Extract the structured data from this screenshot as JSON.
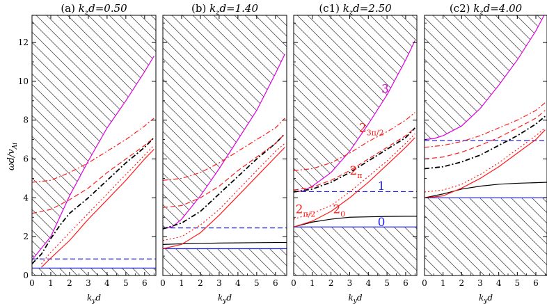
{
  "figure": {
    "ylabel": "ωd/v",
    "ylabel_sub": "Ai",
    "xlabel": "k",
    "xlabel_sub": "y",
    "xlabel_tail": "d"
  },
  "colors": {
    "black": "#000000",
    "red": "#ff1a1a",
    "blue": "#2222ee",
    "magenta": "#e000e0"
  },
  "chart_data": [
    {
      "type": "line",
      "title": "(a)  k_z d=0.50",
      "title_prefix": "(a)",
      "title_kz": "k",
      "title_sub": "z",
      "title_value": "d=0.50",
      "xlim": [
        0,
        6.6
      ],
      "ylim": [
        0,
        13.4
      ],
      "xticks": [
        "0",
        "1",
        "2",
        "3",
        "4",
        "5",
        "6"
      ],
      "yticks": [
        "0",
        "2",
        "4",
        "6",
        "8",
        "10",
        "12"
      ],
      "grid": false,
      "hatched_regions": "above upper boundary and below lower boundary",
      "series": [
        {
          "role": "upper-boundary",
          "color": "magenta",
          "dash": "solid",
          "x": [
            0,
            1,
            2,
            3,
            4,
            5,
            6,
            6.5
          ],
          "y": [
            0.8,
            2.0,
            4.1,
            5.9,
            7.6,
            9.0,
            10.5,
            11.3
          ]
        },
        {
          "role": "lower-boundary",
          "color": "blue",
          "dash": "solid",
          "x": [
            0,
            6.6
          ],
          "y": [
            0.38,
            0.38
          ]
        },
        {
          "role": "blue-dash",
          "color": "blue",
          "dash": "dash",
          "x": [
            0,
            6.6
          ],
          "y": [
            0.85,
            0.85
          ]
        },
        {
          "role": "red-solid",
          "color": "red",
          "dash": "solid",
          "x": [
            0.5,
            1,
            2,
            3,
            4,
            5,
            6,
            6.5
          ],
          "y": [
            0.42,
            0.9,
            1.8,
            2.9,
            3.9,
            4.9,
            6.0,
            6.5
          ]
        },
        {
          "role": "red-dot",
          "color": "red",
          "dash": "dot",
          "x": [
            0.5,
            1,
            2,
            3,
            4,
            5,
            6,
            6.5
          ],
          "y": [
            0.6,
            1.2,
            2.2,
            3.2,
            4.2,
            5.2,
            6.2,
            6.7
          ]
        },
        {
          "role": "black-dashdot",
          "color": "black",
          "dash": "dashdot",
          "x": [
            0,
            0.5,
            1,
            1.5,
            2,
            3,
            4,
            5,
            6,
            6.5
          ],
          "y": [
            0.6,
            1.1,
            1.9,
            2.6,
            3.2,
            4.0,
            4.9,
            5.8,
            6.6,
            7.1
          ]
        },
        {
          "role": "red-dash",
          "color": "red",
          "dash": "dash",
          "x": [
            0,
            1,
            2,
            3,
            4,
            5,
            6,
            6.5
          ],
          "y": [
            3.2,
            3.4,
            3.9,
            4.5,
            5.3,
            6.0,
            6.7,
            7.1
          ]
        },
        {
          "role": "red-dashdot",
          "color": "red",
          "dash": "dashdot",
          "x": [
            0,
            1,
            2,
            3,
            4,
            5,
            6,
            6.5
          ],
          "y": [
            4.8,
            4.9,
            5.3,
            5.8,
            6.4,
            7.0,
            7.7,
            8.1
          ]
        }
      ],
      "annotations": []
    },
    {
      "type": "line",
      "title": "(b)  k_z d=1.40",
      "title_prefix": "(b)",
      "title_kz": "k",
      "title_sub": "z",
      "title_value": "d=1.40",
      "xlim": [
        0,
        6.6
      ],
      "ylim": [
        0,
        13.4
      ],
      "xticks": [
        "0",
        "1",
        "2",
        "3",
        "4",
        "5",
        "6"
      ],
      "yticks": [],
      "grid": false,
      "series": [
        {
          "role": "upper-boundary",
          "color": "magenta",
          "dash": "solid",
          "x": [
            0,
            0.5,
            1,
            2,
            3,
            4,
            5,
            6,
            6.5
          ],
          "y": [
            2.4,
            2.5,
            2.9,
            4.1,
            5.5,
            7.0,
            8.5,
            10.4,
            11.4
          ]
        },
        {
          "role": "lower-boundary",
          "color": "blue",
          "dash": "solid",
          "x": [
            0,
            6.6
          ],
          "y": [
            1.38,
            1.38
          ]
        },
        {
          "role": "blue-dash",
          "color": "blue",
          "dash": "dash",
          "x": [
            0,
            6.6
          ],
          "y": [
            2.45,
            2.45
          ]
        },
        {
          "role": "black-solid",
          "color": "black",
          "dash": "solid",
          "x": [
            0,
            1,
            2,
            3,
            4,
            5,
            6,
            6.6
          ],
          "y": [
            1.6,
            1.63,
            1.65,
            1.67,
            1.68,
            1.69,
            1.7,
            1.7
          ]
        },
        {
          "role": "red-solid",
          "color": "red",
          "dash": "solid",
          "x": [
            0,
            1,
            2,
            3,
            4,
            5,
            6,
            6.5
          ],
          "y": [
            1.38,
            1.6,
            2.2,
            3.1,
            4.1,
            5.1,
            6.1,
            6.6
          ]
        },
        {
          "role": "red-dot",
          "color": "red",
          "dash": "dot",
          "x": [
            0,
            1,
            2,
            3,
            4,
            5,
            6,
            6.5
          ],
          "y": [
            1.8,
            2.0,
            2.6,
            3.4,
            4.4,
            5.4,
            6.4,
            6.8
          ]
        },
        {
          "role": "black-dashdot",
          "color": "black",
          "dash": "dashdot",
          "x": [
            0,
            1,
            2,
            3,
            4,
            5,
            6,
            6.5
          ],
          "y": [
            2.4,
            2.7,
            3.3,
            4.2,
            5.1,
            6.0,
            6.8,
            7.3
          ]
        },
        {
          "role": "red-dash",
          "color": "red",
          "dash": "dash",
          "x": [
            0,
            1,
            2,
            3,
            4,
            5,
            6,
            6.5
          ],
          "y": [
            3.5,
            3.6,
            4.0,
            4.6,
            5.4,
            6.1,
            6.8,
            7.3
          ]
        },
        {
          "role": "red-dashdot",
          "color": "red",
          "dash": "dashdot",
          "x": [
            0,
            1,
            2,
            3,
            4,
            5,
            6,
            6.5
          ],
          "y": [
            4.9,
            5.0,
            5.3,
            5.8,
            6.4,
            7.0,
            7.6,
            8.1
          ]
        }
      ],
      "annotations": []
    },
    {
      "type": "line",
      "title": "(c1)  k_z d=2.50",
      "title_prefix": "(c1)",
      "title_kz": "k",
      "title_sub": "z",
      "title_value": "d=2.50",
      "xlim": [
        0,
        6.6
      ],
      "ylim": [
        0,
        13.4
      ],
      "xticks": [
        "0",
        "1",
        "2",
        "3",
        "4",
        "5",
        "6"
      ],
      "yticks": [],
      "grid": false,
      "series": [
        {
          "role": "upper-boundary",
          "color": "magenta",
          "dash": "solid",
          "x": [
            0,
            0.5,
            1,
            2,
            3,
            4,
            5,
            6,
            6.5
          ],
          "y": [
            4.3,
            4.35,
            4.6,
            5.3,
            6.4,
            7.8,
            9.3,
            11.1,
            12.1
          ]
        },
        {
          "role": "lower-boundary",
          "color": "blue",
          "dash": "solid",
          "x": [
            0,
            6.6
          ],
          "y": [
            2.5,
            2.5
          ]
        },
        {
          "role": "blue-dash",
          "color": "blue",
          "dash": "dash",
          "x": [
            0,
            6.6
          ],
          "y": [
            4.32,
            4.32
          ]
        },
        {
          "role": "black-solid",
          "color": "black",
          "dash": "solid",
          "x": [
            0,
            1,
            2,
            3,
            4,
            5,
            6,
            6.6
          ],
          "y": [
            2.5,
            2.75,
            2.9,
            3.0,
            3.02,
            3.04,
            3.05,
            3.05
          ]
        },
        {
          "role": "red-solid",
          "color": "red",
          "dash": "solid",
          "x": [
            0,
            1,
            2,
            3,
            4,
            5,
            6,
            6.5
          ],
          "y": [
            2.5,
            2.8,
            3.3,
            4.0,
            4.8,
            5.7,
            6.6,
            7.1
          ]
        },
        {
          "role": "red-dot",
          "color": "red",
          "dash": "dot",
          "x": [
            0,
            1,
            2,
            3,
            4,
            5,
            6,
            6.5
          ],
          "y": [
            2.9,
            3.2,
            3.6,
            4.3,
            5.1,
            5.9,
            6.8,
            7.3
          ]
        },
        {
          "role": "black-dashdot",
          "color": "black",
          "dash": "dashdot",
          "x": [
            0,
            1,
            2,
            3,
            4,
            5,
            6,
            6.5
          ],
          "y": [
            4.3,
            4.45,
            4.8,
            5.3,
            5.9,
            6.5,
            7.1,
            7.6
          ]
        },
        {
          "role": "red-dash",
          "color": "red",
          "dash": "dash",
          "x": [
            0,
            1,
            2,
            3,
            4,
            5,
            6,
            6.5
          ],
          "y": [
            4.4,
            4.55,
            4.9,
            5.4,
            6.0,
            6.6,
            7.2,
            7.6
          ]
        },
        {
          "role": "red-dashdot",
          "color": "red",
          "dash": "dashdot",
          "x": [
            0,
            1,
            2,
            3,
            4,
            5,
            6,
            6.5
          ],
          "y": [
            5.4,
            5.5,
            5.8,
            6.3,
            6.9,
            7.4,
            8.0,
            8.4
          ]
        }
      ],
      "annotations": [
        {
          "text": "3",
          "x": 4.7,
          "y": 9.4,
          "color": "magenta"
        },
        {
          "text": "2",
          "sub": "3π/2",
          "x": 3.5,
          "y": 7.4,
          "color": "red"
        },
        {
          "text": "2",
          "sub": "π",
          "x": 3.0,
          "y": 5.2,
          "color": "red"
        },
        {
          "text": "1",
          "x": 4.5,
          "y": 4.4,
          "color": "blue"
        },
        {
          "text": "2",
          "sub": "π/2",
          "x": 0.1,
          "y": 3.2,
          "color": "red"
        },
        {
          "text": "2",
          "sub": "0",
          "x": 2.1,
          "y": 3.2,
          "color": "red"
        },
        {
          "text": "0",
          "x": 4.5,
          "y": 2.55,
          "color": "blue"
        }
      ]
    },
    {
      "type": "line",
      "title": "(c2)  k_z d=4.00",
      "title_prefix": "(c2)",
      "title_kz": "k",
      "title_sub": "z",
      "title_value": "d=4.00",
      "xlim": [
        0,
        6.6
      ],
      "ylim": [
        0,
        13.4
      ],
      "xticks": [
        "0",
        "1",
        "2",
        "3",
        "4",
        "5",
        "6"
      ],
      "yticks": [],
      "grid": false,
      "series": [
        {
          "role": "upper-boundary",
          "color": "magenta",
          "dash": "solid",
          "x": [
            0,
            0.5,
            1,
            2,
            3,
            4,
            5,
            6,
            6.5
          ],
          "y": [
            7.0,
            7.05,
            7.2,
            7.7,
            8.6,
            9.8,
            11.1,
            12.6,
            13.5
          ]
        },
        {
          "role": "lower-boundary",
          "color": "blue",
          "dash": "solid",
          "x": [
            0,
            6.6
          ],
          "y": [
            4.0,
            4.0
          ]
        },
        {
          "role": "blue-dash",
          "color": "blue",
          "dash": "dash",
          "x": [
            0,
            6.6
          ],
          "y": [
            6.95,
            6.95
          ]
        },
        {
          "role": "black-solid",
          "color": "black",
          "dash": "solid",
          "x": [
            0,
            1,
            2,
            3,
            4,
            5,
            6,
            6.6
          ],
          "y": [
            4.0,
            4.2,
            4.45,
            4.6,
            4.7,
            4.75,
            4.78,
            4.8
          ]
        },
        {
          "role": "red-solid",
          "color": "red",
          "dash": "solid",
          "x": [
            0,
            1,
            2,
            3,
            4,
            5,
            6,
            6.5
          ],
          "y": [
            4.0,
            4.1,
            4.5,
            5.0,
            5.6,
            6.3,
            7.0,
            7.5
          ]
        },
        {
          "role": "red-dot",
          "color": "red",
          "dash": "dot",
          "x": [
            0,
            1,
            2,
            3,
            4,
            5,
            6,
            6.5
          ],
          "y": [
            4.3,
            4.4,
            4.7,
            5.2,
            5.8,
            6.5,
            7.2,
            7.6
          ]
        },
        {
          "role": "black-dashdot",
          "color": "black",
          "dash": "dashdot",
          "x": [
            0,
            1,
            2,
            3,
            4,
            5,
            6,
            6.5
          ],
          "y": [
            5.5,
            5.6,
            5.85,
            6.2,
            6.7,
            7.2,
            7.8,
            8.2
          ]
        },
        {
          "role": "red-dash",
          "color": "red",
          "dash": "dash",
          "x": [
            0,
            1,
            2,
            3,
            4,
            5,
            6,
            6.5
          ],
          "y": [
            6.0,
            6.1,
            6.35,
            6.7,
            7.1,
            7.6,
            8.1,
            8.5
          ]
        },
        {
          "role": "red-dashdot",
          "color": "red",
          "dash": "dashdot",
          "x": [
            0,
            1,
            2,
            3,
            4,
            5,
            6,
            6.5
          ],
          "y": [
            6.6,
            6.7,
            6.9,
            7.2,
            7.6,
            8.0,
            8.5,
            8.9
          ]
        }
      ],
      "annotations": []
    }
  ]
}
